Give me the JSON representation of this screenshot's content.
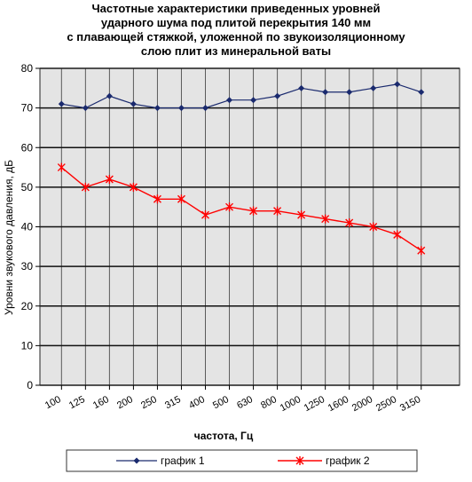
{
  "chart_data": {
    "type": "line",
    "title_lines": [
      "Частотные характеристики приведенных уровней",
      "ударного шума под плитой перекрытия 140 мм",
      "с плавающей стяжкой, уложенной по звукоизоляционному",
      "слою плит из минеральной ваты"
    ],
    "xlabel": "частота, Гц",
    "ylabel": "Уровни звукового давления, дБ",
    "categories": [
      "100",
      "125",
      "160",
      "200",
      "250",
      "315",
      "400",
      "500",
      "630",
      "800",
      "1000",
      "1250",
      "1600",
      "2000",
      "2500",
      "3150"
    ],
    "ylim": [
      0,
      80
    ],
    "yticks": [
      0,
      10,
      20,
      30,
      40,
      50,
      60,
      70,
      80
    ],
    "grid": true,
    "legend_position": "bottom",
    "series": [
      {
        "name": "график 1",
        "color": "#1a2a6e",
        "marker": "diamond",
        "values": [
          71,
          70,
          73,
          71,
          70,
          70,
          70,
          72,
          72,
          73,
          75,
          74,
          74,
          75,
          76,
          74
        ]
      },
      {
        "name": "график 2",
        "color": "#ff0000",
        "marker": "star",
        "values": [
          55,
          50,
          52,
          50,
          47,
          47,
          43,
          45,
          44,
          44,
          43,
          42,
          41,
          40,
          38,
          34
        ]
      }
    ]
  }
}
